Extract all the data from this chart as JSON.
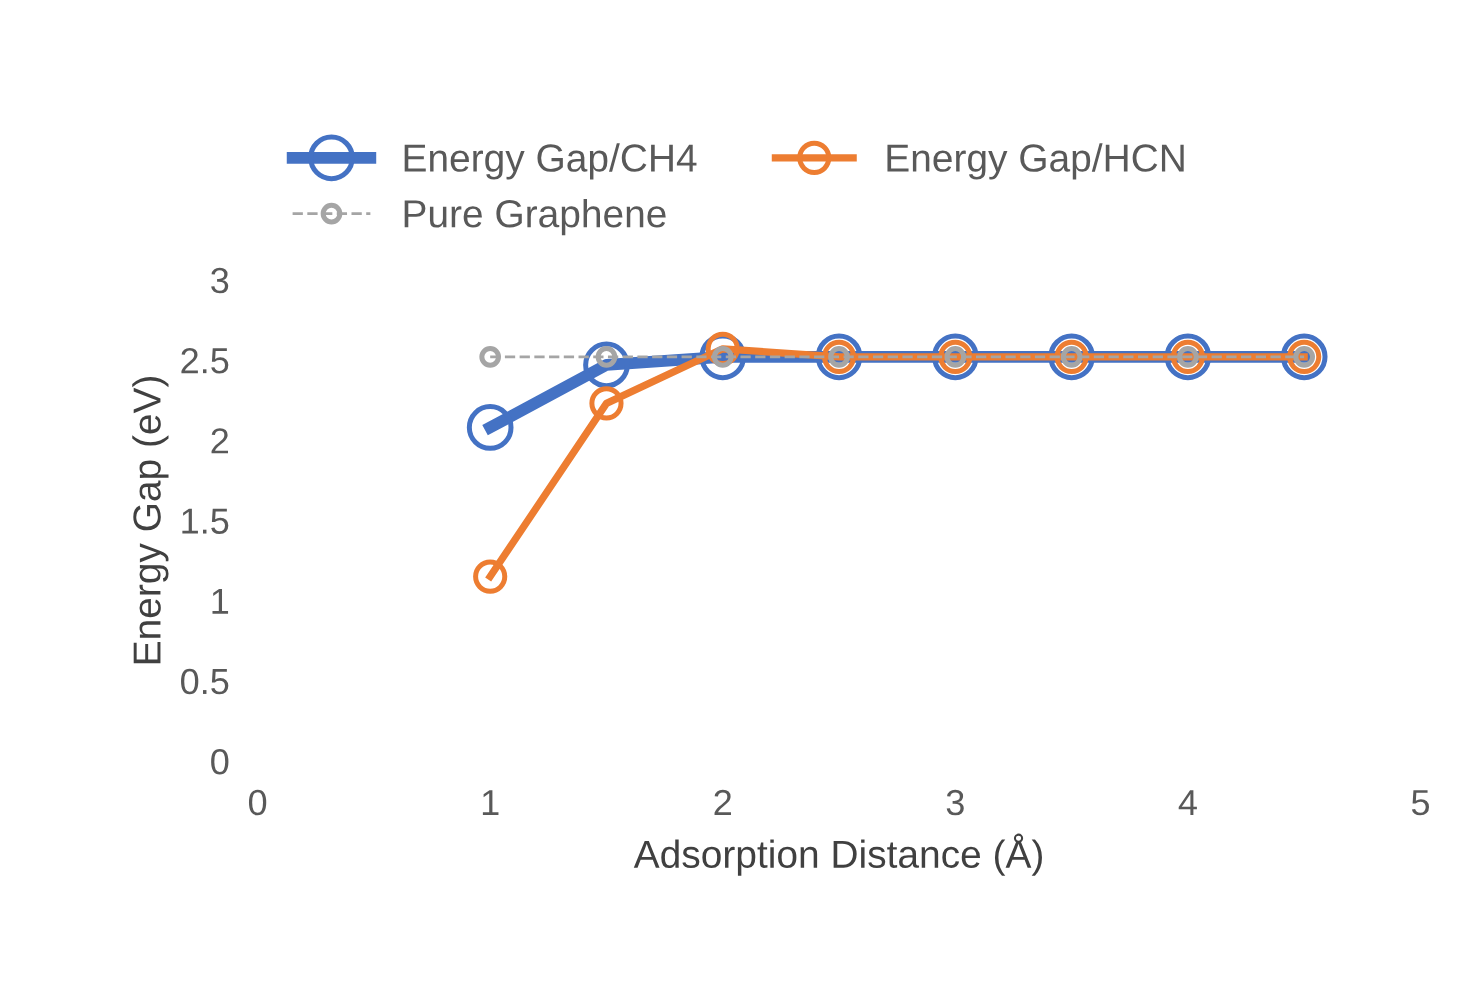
{
  "chart_data": {
    "type": "line",
    "xlabel": "Adsorption Distance (Å)",
    "ylabel": "Energy Gap (eV)",
    "x": [
      1,
      1.5,
      2,
      2.5,
      3,
      3.5,
      4,
      4.5
    ],
    "series": [
      {
        "name": "Energy Gap/CH4",
        "color": "#4472c4",
        "values": [
          2.08,
          2.47,
          2.52,
          2.52,
          2.52,
          2.52,
          2.52,
          2.52
        ],
        "line_style": "solid"
      },
      {
        "name": "Energy Gap/HCN",
        "color": "#ed7d31",
        "values": [
          1.15,
          2.23,
          2.57,
          2.52,
          2.52,
          2.52,
          2.52,
          2.52
        ],
        "line_style": "solid"
      },
      {
        "name": "Pure Graphene",
        "color": "#a5a5a5",
        "values": [
          2.52,
          2.52,
          2.52,
          2.52,
          2.52,
          2.52,
          2.52,
          2.52
        ],
        "line_style": "dashed"
      }
    ],
    "xlim": [
      0,
      5
    ],
    "xticks": [
      0,
      1,
      2,
      3,
      4,
      5
    ],
    "ylim": [
      0,
      3
    ],
    "yticks": [
      0,
      0.5,
      1,
      1.5,
      2,
      2.5,
      3
    ],
    "grid": false,
    "legend": "top",
    "marker": "circle"
  }
}
